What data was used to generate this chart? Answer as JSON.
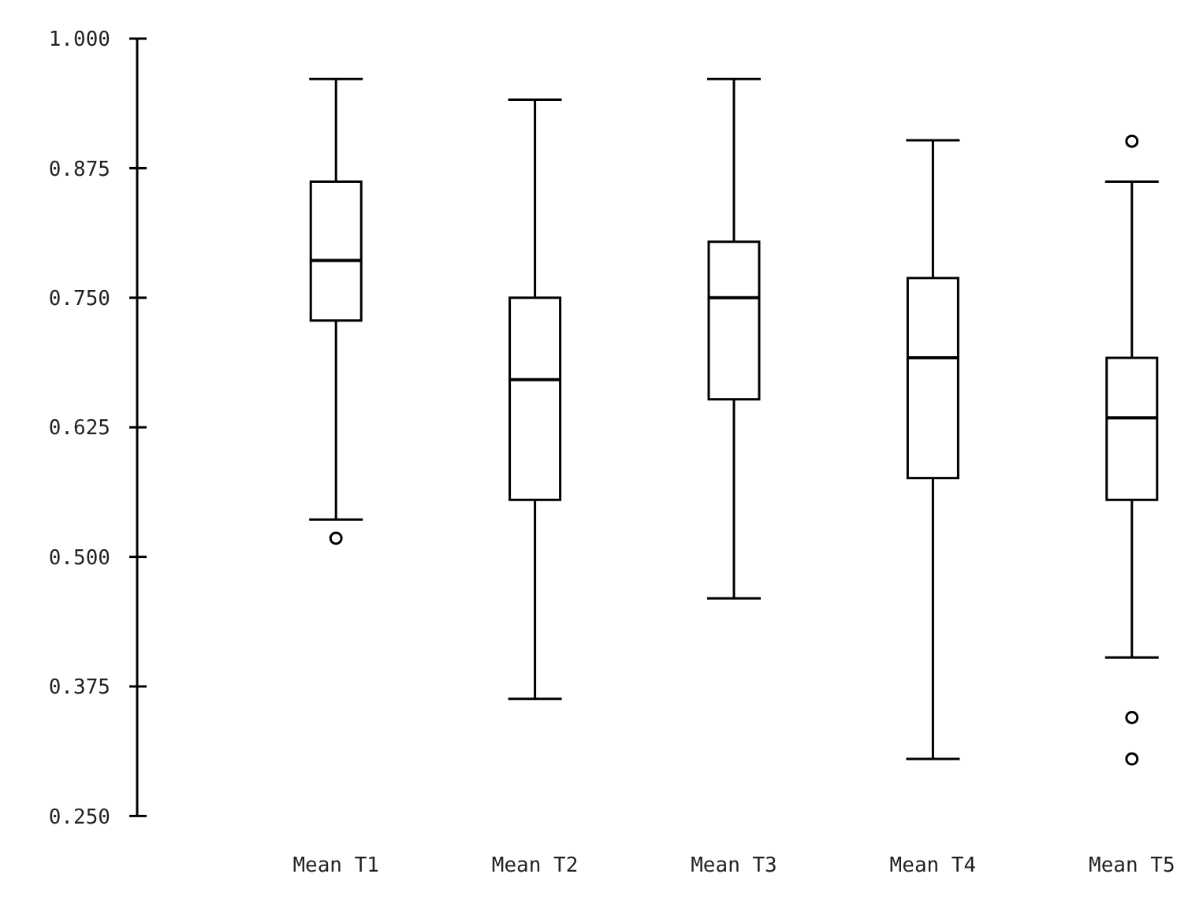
{
  "chart_data": {
    "type": "box",
    "categories": [
      "Mean T1",
      "Mean T2",
      "Mean T3",
      "Mean T4",
      "Mean T5"
    ],
    "boxes": [
      {
        "low": 0.536,
        "q1": 0.728,
        "median": 0.786,
        "q3": 0.862,
        "high": 0.961,
        "outliers": [
          0.518
        ]
      },
      {
        "low": 0.363,
        "q1": 0.555,
        "median": 0.671,
        "q3": 0.75,
        "high": 0.941
      },
      {
        "low": 0.46,
        "q1": 0.652,
        "median": 0.75,
        "q3": 0.804,
        "high": 0.961
      },
      {
        "low": 0.305,
        "q1": 0.576,
        "median": 0.692,
        "q3": 0.769,
        "high": 0.902
      },
      {
        "low": 0.403,
        "q1": 0.555,
        "median": 0.634,
        "q3": 0.692,
        "high": 0.862,
        "outliers": [
          0.901,
          0.345,
          0.305
        ]
      }
    ],
    "color": "#000000",
    "ylim": [
      0.25,
      1
    ],
    "yticks": [
      {
        "value": 0.25,
        "label": "0.250"
      },
      {
        "value": 0.375,
        "label": "0.375"
      },
      {
        "value": 0.5,
        "label": "0.500"
      },
      {
        "value": 0.625,
        "label": "0.625"
      },
      {
        "value": 0.75,
        "label": "0.750"
      },
      {
        "value": 0.875,
        "label": "0.875"
      },
      {
        "value": 1,
        "label": "1.000"
      }
    ],
    "grid": false
  }
}
